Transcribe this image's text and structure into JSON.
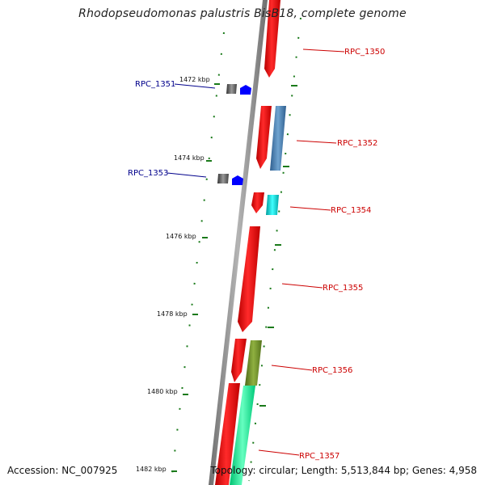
{
  "title": "Rhodopseudomonas palustris BisB18, complete genome",
  "footer": {
    "accession": "Accession: NC_007925",
    "summary": "Topology: circular; Length: 5,513,844 bp; Genes: 4,958"
  },
  "colors": {
    "backbone": "#8c8c8c",
    "forward_gene": "#ff0000",
    "label_forward": "#cc0000",
    "label_reverse": "#00008b",
    "tick": "#1a7a1a",
    "cds_blue": "#4682b4",
    "cds_cyan": "#00d0d0",
    "cds_olive": "#6b8e23",
    "cds_spring": "#00ff99",
    "reverse_arrow": "#0000ff",
    "reverse_gray": "#555555"
  },
  "ticks": [
    {
      "label": "1472 kbp"
    },
    {
      "label": "1474 kbp"
    },
    {
      "label": "1476 kbp"
    },
    {
      "label": "1478 kbp"
    },
    {
      "label": "1480 kbp"
    },
    {
      "label": "1482 kbp"
    }
  ],
  "genes": [
    {
      "label": "RPC_1350",
      "strand": "forward"
    },
    {
      "label": "RPC_1351",
      "strand": "reverse"
    },
    {
      "label": "RPC_1352",
      "strand": "forward"
    },
    {
      "label": "RPC_1353",
      "strand": "reverse"
    },
    {
      "label": "RPC_1354",
      "strand": "forward"
    },
    {
      "label": "RPC_1355",
      "strand": "forward"
    },
    {
      "label": "RPC_1356",
      "strand": "forward"
    },
    {
      "label": "RPC_1357",
      "strand": "forward"
    }
  ]
}
